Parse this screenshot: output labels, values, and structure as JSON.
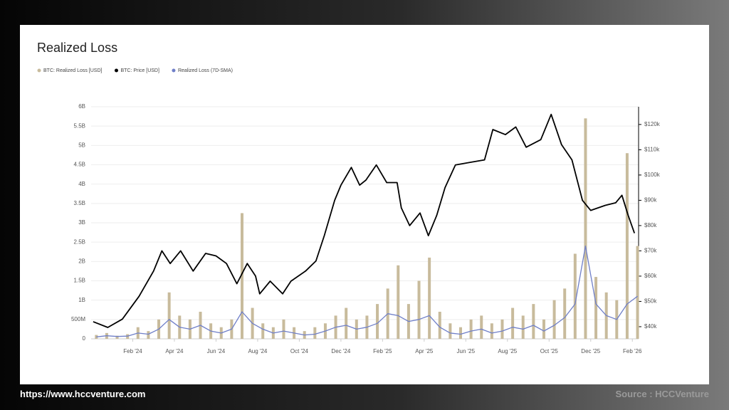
{
  "chart_data": {
    "type": "combo",
    "title": "Realized Loss",
    "xlim": [
      0,
      26.3
    ],
    "xticks": [
      {
        "value": 2,
        "label": "Feb '24"
      },
      {
        "value": 4,
        "label": "Apr '24"
      },
      {
        "value": 6,
        "label": "Jun '24"
      },
      {
        "value": 8,
        "label": "Aug '24"
      },
      {
        "value": 10,
        "label": "Oct '24"
      },
      {
        "value": 12,
        "label": "Dec '24"
      },
      {
        "value": 14,
        "label": "Feb '25"
      },
      {
        "value": 16,
        "label": "Apr '25"
      },
      {
        "value": 18,
        "label": "Jun '25"
      },
      {
        "value": 20,
        "label": "Aug '25"
      },
      {
        "value": 22,
        "label": "Oct '25"
      },
      {
        "value": 24,
        "label": "Dec '25"
      },
      {
        "value": 26,
        "label": "Feb '26"
      }
    ],
    "ylim": [
      0,
      6000000000
    ],
    "yticks": [
      0,
      {
        "value": 500000000,
        "label": "500M"
      },
      {
        "value": 1000000000,
        "label": "1B"
      },
      {
        "value": 1500000000,
        "label": "1.5B"
      },
      {
        "value": 2000000000,
        "label": "2B"
      },
      {
        "value": 2500000000,
        "label": "2.5B"
      },
      {
        "value": 3000000000,
        "label": "3B"
      },
      {
        "value": 3500000000,
        "label": "3.5B"
      },
      {
        "value": 4000000000,
        "label": "4B"
      },
      {
        "value": 4500000000,
        "label": "4.5B"
      },
      {
        "value": 5000000000,
        "label": "5B"
      },
      {
        "value": 5500000000,
        "label": "5.5B"
      },
      {
        "value": 6000000000,
        "label": "6B"
      }
    ],
    "y2lim": [
      35200,
      127000
    ],
    "y2ticks": [
      {
        "value": 40000,
        "label": "$40k"
      },
      {
        "value": 50000,
        "label": "$50k"
      },
      {
        "value": 60000,
        "label": "$60k"
      },
      {
        "value": 70000,
        "label": "$70k"
      },
      {
        "value": 80000,
        "label": "$80k"
      },
      {
        "value": 90000,
        "label": "$90k"
      },
      {
        "value": 100000,
        "label": "$100k"
      },
      {
        "value": 110000,
        "label": "$110k"
      },
      {
        "value": 120000,
        "label": "$120k"
      }
    ],
    "grid": true,
    "series": [
      {
        "name": "BTC: Realized Loss [USD]",
        "color": "#c8bb9c",
        "type": "bar",
        "x": [
          0.25,
          0.75,
          1.25,
          1.75,
          2.25,
          2.75,
          3.25,
          3.75,
          4.25,
          4.75,
          5.25,
          5.75,
          6.25,
          6.75,
          7.25,
          7.75,
          8.25,
          8.75,
          9.25,
          9.75,
          10.25,
          10.75,
          11.25,
          11.75,
          12.25,
          12.75,
          13.25,
          13.75,
          14.25,
          14.75,
          15.25,
          15.75,
          16.25,
          16.75,
          17.25,
          17.75,
          18.25,
          18.75,
          19.25,
          19.75,
          20.25,
          20.75,
          21.25,
          21.75,
          22.25,
          22.75,
          23.25,
          23.75,
          24.25,
          24.75,
          25.25,
          25.75,
          26.25
        ],
        "values": [
          100000000,
          150000000,
          80000000,
          120000000,
          300000000,
          200000000,
          500000000,
          1200000000,
          600000000,
          500000000,
          700000000,
          400000000,
          300000000,
          500000000,
          3250000000,
          800000000,
          400000000,
          300000000,
          500000000,
          300000000,
          200000000,
          300000000,
          400000000,
          600000000,
          800000000,
          500000000,
          600000000,
          900000000,
          1300000000,
          1900000000,
          900000000,
          1500000000,
          2100000000,
          700000000,
          400000000,
          300000000,
          500000000,
          600000000,
          400000000,
          500000000,
          800000000,
          600000000,
          900000000,
          500000000,
          1000000000,
          1300000000,
          2200000000,
          5700000000,
          1600000000,
          1200000000,
          1000000000,
          4800000000,
          2400000000
        ]
      },
      {
        "name": "BTC: Price [USD]",
        "color": "#000000",
        "type": "line",
        "axis": "y2",
        "x": [
          0.1,
          0.8,
          1.5,
          2.3,
          3,
          3.4,
          3.8,
          4.3,
          4.9,
          5.5,
          6,
          6.5,
          7,
          7.5,
          7.9,
          8.1,
          8.6,
          9.2,
          9.6,
          10.3,
          10.8,
          11.2,
          11.7,
          12,
          12.5,
          12.9,
          13.2,
          13.7,
          14.2,
          14.7,
          14.9,
          15.3,
          15.8,
          16.2,
          16.6,
          17,
          17.5,
          18.2,
          18.9,
          19.3,
          19.9,
          20.4,
          20.9,
          21.6,
          22.1,
          22.6,
          23.1,
          23.6,
          24,
          24.7,
          25.2,
          25.5,
          25.8,
          26.1
        ],
        "values": [
          42000,
          39700,
          43000,
          52000,
          62000,
          70000,
          65000,
          70000,
          62000,
          69000,
          68000,
          65000,
          57000,
          65000,
          60000,
          53000,
          58000,
          53000,
          58000,
          62000,
          66000,
          76000,
          90000,
          96000,
          103000,
          96000,
          98000,
          104000,
          97000,
          97000,
          87000,
          80000,
          85000,
          76000,
          84000,
          95000,
          104000,
          105000,
          106000,
          118000,
          116000,
          119000,
          111000,
          114000,
          124000,
          112000,
          106000,
          90000,
          86000,
          88000,
          89000,
          92000,
          84000,
          77000
        ]
      },
      {
        "name": "Realized Loss (7D-SMA)",
        "color": "#6f7fc8",
        "type": "line",
        "x": [
          0.25,
          0.75,
          1.25,
          1.75,
          2.25,
          2.75,
          3.25,
          3.75,
          4.25,
          4.75,
          5.25,
          5.75,
          6.25,
          6.75,
          7.25,
          7.75,
          8.25,
          8.75,
          9.25,
          9.75,
          10.25,
          10.75,
          11.25,
          11.75,
          12.25,
          12.75,
          13.25,
          13.75,
          14.25,
          14.75,
          15.25,
          15.75,
          16.25,
          16.75,
          17.25,
          17.75,
          18.25,
          18.75,
          19.25,
          19.75,
          20.25,
          20.75,
          21.25,
          21.75,
          22.25,
          22.75,
          23.25,
          23.75,
          24.25,
          24.75,
          25.25,
          25.75,
          26.25
        ],
        "values": [
          50000000,
          80000000,
          60000000,
          70000000,
          150000000,
          120000000,
          250000000,
          500000000,
          300000000,
          250000000,
          350000000,
          200000000,
          150000000,
          250000000,
          700000000,
          400000000,
          250000000,
          150000000,
          200000000,
          150000000,
          100000000,
          120000000,
          200000000,
          300000000,
          350000000,
          250000000,
          300000000,
          400000000,
          650000000,
          600000000,
          450000000,
          500000000,
          600000000,
          300000000,
          150000000,
          120000000,
          200000000,
          250000000,
          150000000,
          200000000,
          300000000,
          250000000,
          350000000,
          200000000,
          350000000,
          550000000,
          900000000,
          2400000000,
          900000000,
          600000000,
          500000000,
          900000000,
          1100000000
        ]
      }
    ]
  },
  "footer": {
    "url": "https://www.hccventure.com",
    "source": "Source : HCCVenture"
  }
}
